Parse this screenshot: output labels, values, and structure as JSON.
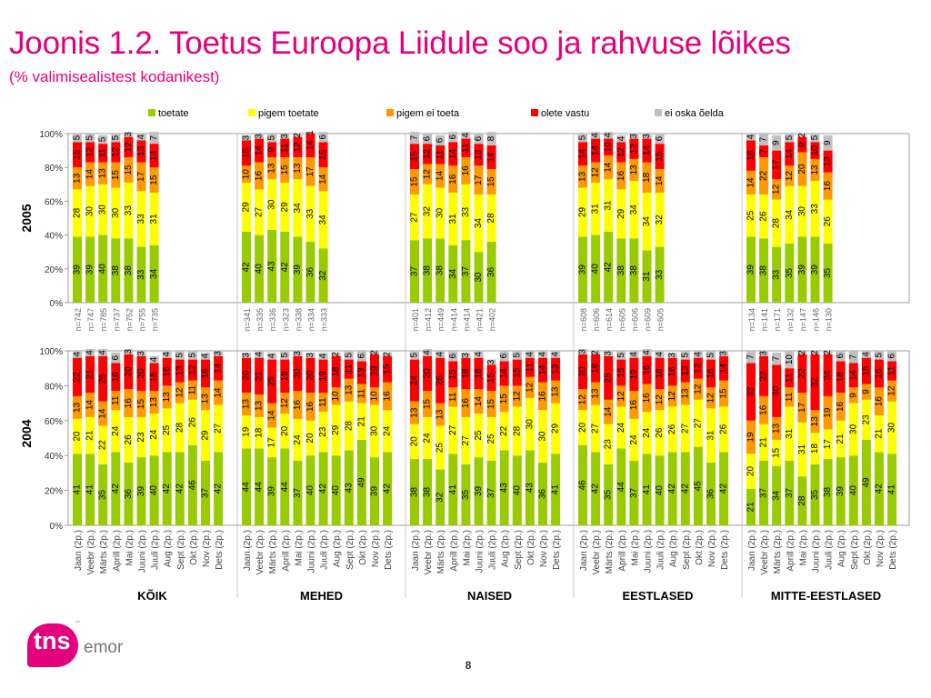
{
  "title": "Joonis 1.2. Toetus Euroopa Liidule soo ja rahvuse lõikes",
  "subtitle": "(% valimisealistest kodanikest)",
  "page_number": "8",
  "logo": {
    "brand": "tns",
    "suffix": "emor",
    "mark": "™"
  },
  "colors": {
    "toetate": "#99cc00",
    "pigem_toetate": "#ffff00",
    "pigem_ei_toeta": "#ff9900",
    "olete_vastu": "#ff0000",
    "ei_oska_oelda": "#c0c0c0",
    "title": "#e4007c"
  },
  "chart_data": {
    "type": "bar",
    "stacked": true,
    "legend": [
      "toetate",
      "pigem toetate",
      "pigem ei toeta",
      "olete vastu",
      "ei oska õelda"
    ],
    "legend_position": "top",
    "y_ticks": [
      "0%",
      "20%",
      "40%",
      "60%",
      "80%",
      "100%"
    ],
    "ylim": [
      0,
      100
    ],
    "group_labels": [
      "KÕIK",
      "MEHED",
      "NAISED",
      "EESTLASED",
      "MITTE-EESTLASED"
    ],
    "panels": [
      {
        "year": "2005",
        "groups": [
          {
            "name": "KÕIK",
            "bars": [
              {
                "label": "n=742",
                "values": [
                  39,
                  28,
                  13,
                  15,
                  5
                ]
              },
              {
                "label": "n=747",
                "values": [
                  39,
                  30,
                  14,
                  12,
                  5
                ]
              },
              {
                "label": "n=785",
                "values": [
                  40,
                  30,
                  13,
                  11,
                  5
                ]
              },
              {
                "label": "n=737",
                "values": [
                  38,
                  30,
                  15,
                  12,
                  5
                ]
              },
              {
                "label": "n=752",
                "values": [
                  38,
                  33,
                  15,
                  12,
                  3
                ]
              },
              {
                "label": "n=755",
                "values": [
                  33,
                  33,
                  17,
                  13,
                  4
                ]
              },
              {
                "label": "n=735",
                "values": [
                  34,
                  31,
                  15,
                  14,
                  7
                ]
              }
            ]
          },
          {
            "name": "MEHED",
            "bars": [
              {
                "label": "n=341",
                "values": [
                  42,
                  29,
                  10,
                  15,
                  3
                ]
              },
              {
                "label": "n=335",
                "values": [
                  40,
                  27,
                  16,
                  14,
                  3
                ]
              },
              {
                "label": "n=336",
                "values": [
                  43,
                  30,
                  13,
                  9,
                  5
                ]
              },
              {
                "label": "n=323",
                "values": [
                  42,
                  29,
                  15,
                  11,
                  3
                ]
              },
              {
                "label": "n=338",
                "values": [
                  39,
                  34,
                  13,
                  12,
                  2
                ]
              },
              {
                "label": "n=334",
                "values": [
                  36,
                  33,
                  17,
                  14,
                  1
                ]
              },
              {
                "label": "n=333",
                "values": [
                  32,
                  34,
                  14,
                  15,
                  6
                ]
              }
            ]
          },
          {
            "name": "NAISED",
            "bars": [
              {
                "label": "n=401",
                "values": [
                  37,
                  27,
                  15,
                  15,
                  7
                ]
              },
              {
                "label": "n=412",
                "values": [
                  38,
                  32,
                  12,
                  12,
                  6
                ]
              },
              {
                "label": "n=449",
                "values": [
                  38,
                  30,
                  14,
                  11,
                  6
                ]
              },
              {
                "label": "n=414",
                "values": [
                  34,
                  31,
                  16,
                  14,
                  6
                ]
              },
              {
                "label": "n=414",
                "values": [
                  37,
                  33,
                  16,
                  11,
                  4
                ]
              },
              {
                "label": "n=421",
                "values": [
                  30,
                  34,
                  17,
                  13,
                  6
                ]
              },
              {
                "label": "n=402",
                "values": [
                  36,
                  28,
                  15,
                  14,
                  8
                ]
              }
            ]
          },
          {
            "name": "EESTLASED",
            "bars": [
              {
                "label": "n=608",
                "values": [
                  39,
                  29,
                  13,
                  14,
                  5
                ]
              },
              {
                "label": "n=606",
                "values": [
                  40,
                  31,
                  12,
                  14,
                  4
                ]
              },
              {
                "label": "n=614",
                "values": [
                  42,
                  31,
                  14,
                  10,
                  4
                ]
              },
              {
                "label": "n=605",
                "values": [
                  38,
                  29,
                  16,
                  12,
                  4
                ]
              },
              {
                "label": "n=606",
                "values": [
                  38,
                  34,
                  13,
                  12,
                  3
                ]
              },
              {
                "label": "n=609",
                "values": [
                  31,
                  34,
                  18,
                  14,
                  3
                ]
              },
              {
                "label": "n=605",
                "values": [
                  33,
                  32,
                  14,
                  15,
                  6
                ]
              }
            ]
          },
          {
            "name": "MITTE-EESTLASED",
            "bars": [
              {
                "label": "n=134",
                "values": [
                  39,
                  25,
                  14,
                  18,
                  4
                ]
              },
              {
                "label": "n=141",
                "values": [
                  38,
                  26,
                  22,
                  7,
                  7
                ]
              },
              {
                "label": "n=171",
                "values": [
                  33,
                  28,
                  12,
                  17,
                  9
                ]
              },
              {
                "label": "n=132",
                "values": [
                  35,
                  34,
                  12,
                  14,
                  5
                ]
              },
              {
                "label": "n=147",
                "values": [
                  39,
                  30,
                  20,
                  9,
                  2
                ]
              },
              {
                "label": "n=146",
                "values": [
                  39,
                  33,
                  13,
                  10,
                  5
                ]
              },
              {
                "label": "n=130",
                "values": [
                  35,
                  26,
                  16,
                  13,
                  9
                ]
              }
            ]
          }
        ]
      },
      {
        "year": "2004",
        "months": [
          "Jaan (2p.)",
          "Veebr (2p.)",
          "Märts (2p.)",
          "Aprill (2p.)",
          "Mai (2p.)",
          "Juuni (2p.)",
          "Juuli (2p.)",
          "Aug (2p.)",
          "Sept (2p.)",
          "Okt (2p.)",
          "Nov (2p.)",
          "Dets (2p.)"
        ],
        "groups": [
          {
            "name": "KÕIK",
            "values": [
              [
                41,
                20,
                13,
                22,
                4
              ],
              [
                41,
                21,
                14,
                21,
                4
              ],
              [
                35,
                22,
                14,
                26,
                4
              ],
              [
                42,
                24,
                11,
                16,
                6
              ],
              [
                36,
                26,
                16,
                20,
                3
              ],
              [
                39,
                23,
                15,
                20,
                3
              ],
              [
                40,
                24,
                13,
                16,
                4
              ],
              [
                42,
                25,
                13,
                16,
                4
              ],
              [
                42,
                28,
                12,
                13,
                5
              ],
              [
                46,
                26,
                11,
                12,
                5
              ],
              [
                37,
                29,
                13,
                16,
                4
              ],
              [
                42,
                27,
                14,
                14,
                3
              ]
            ]
          },
          {
            "name": "MEHED",
            "values": [
              [
                44,
                19,
                13,
                20,
                3
              ],
              [
                44,
                18,
                13,
                21,
                4
              ],
              [
                39,
                17,
                14,
                25,
                4
              ],
              [
                44,
                20,
                12,
                19,
                5
              ],
              [
                37,
                24,
                16,
                20,
                3
              ],
              [
                40,
                20,
                16,
                20,
                3
              ],
              [
                42,
                23,
                11,
                19,
                4
              ],
              [
                40,
                29,
                10,
                18,
                2
              ],
              [
                43,
                28,
                13,
                11,
                5
              ],
              [
                49,
                21,
                11,
                13,
                6
              ],
              [
                39,
                30,
                10,
                19,
                2
              ],
              [
                42,
                24,
                16,
                15,
                2
              ]
            ]
          },
          {
            "name": "NAISED",
            "values": [
              [
                38,
                20,
                13,
                24,
                5
              ],
              [
                38,
                24,
                15,
                20,
                4
              ],
              [
                32,
                25,
                13,
                26,
                4
              ],
              [
                41,
                27,
                11,
                15,
                6
              ],
              [
                35,
                27,
                16,
                18,
                3
              ],
              [
                39,
                25,
                14,
                18,
                4
              ],
              [
                37,
                25,
                15,
                15,
                3
              ],
              [
                43,
                22,
                15,
                14,
                6
              ],
              [
                40,
                28,
                12,
                15,
                5
              ],
              [
                43,
                30,
                12,
                11,
                4
              ],
              [
                36,
                30,
                16,
                14,
                4
              ],
              [
                41,
                29,
                13,
                13,
                4
              ]
            ]
          },
          {
            "name": "EESTLASED",
            "values": [
              [
                46,
                20,
                12,
                20,
                3
              ],
              [
                42,
                27,
                13,
                16,
                2
              ],
              [
                35,
                23,
                14,
                25,
                3
              ],
              [
                44,
                24,
                12,
                15,
                5
              ],
              [
                37,
                24,
                16,
                19,
                4
              ],
              [
                41,
                24,
                16,
                16,
                4
              ],
              [
                40,
                26,
                12,
                18,
                4
              ],
              [
                42,
                26,
                12,
                16,
                3
              ],
              [
                42,
                27,
                13,
                13,
                5
              ],
              [
                45,
                27,
                12,
                12,
                4
              ],
              [
                36,
                31,
                12,
                16,
                5
              ],
              [
                42,
                26,
                15,
                14,
                3
              ]
            ]
          },
          {
            "name": "MITTE-EESTLASED",
            "values": [
              [
                21,
                20,
                19,
                33,
                7
              ],
              [
                37,
                21,
                16,
                23,
                3
              ],
              [
                34,
                15,
                13,
                30,
                7
              ],
              [
                37,
                31,
                11,
                11,
                10
              ],
              [
                28,
                31,
                17,
                22,
                2
              ],
              [
                35,
                18,
                13,
                32,
                2
              ],
              [
                38,
                17,
                19,
                24,
                2
              ],
              [
                39,
                21,
                16,
                18,
                6
              ],
              [
                40,
                30,
                9,
                14,
                7
              ],
              [
                49,
                23,
                9,
                15,
                4
              ],
              [
                42,
                21,
                16,
                16,
                5
              ],
              [
                41,
                30,
                12,
                11,
                6
              ]
            ]
          }
        ]
      }
    ]
  }
}
